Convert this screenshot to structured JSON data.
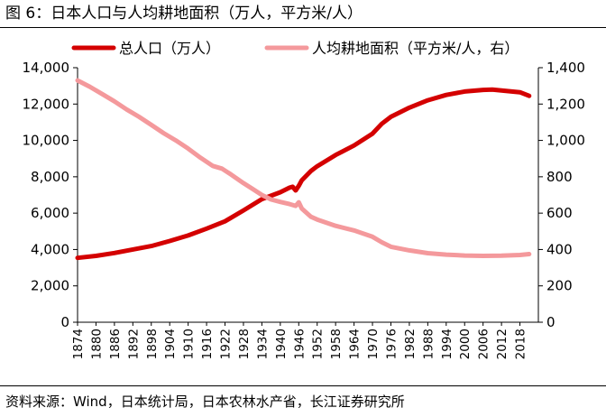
{
  "figure": {
    "title": "图 6：日本人口与人均耕地面积（万人，平方米/人）",
    "source": "资料来源：Wind，日本统计局，日本农林水产省，长江证券研究所"
  },
  "chart_data": {
    "type": "line",
    "title": "日本人口与人均耕地面积（万人，平方米/人）",
    "legend_position": "top",
    "grid": false,
    "x_range": [
      1874,
      2024
    ],
    "x_tick_labels": [
      "1874",
      "1880",
      "1886",
      "1892",
      "1898",
      "1904",
      "1910",
      "1916",
      "1922",
      "1928",
      "1934",
      "1940",
      "1946",
      "1952",
      "1958",
      "1964",
      "1970",
      "1976",
      "1982",
      "1988",
      "1994",
      "2000",
      "2006",
      "2012",
      "2018"
    ],
    "y_left": {
      "range": [
        0,
        14000
      ],
      "tick_labels": [
        "0",
        "2,000",
        "4,000",
        "6,000",
        "8,000",
        "10,000",
        "12,000",
        "14,000"
      ]
    },
    "y_right": {
      "range": [
        0,
        1400
      ],
      "tick_labels": [
        "0",
        "200",
        "400",
        "600",
        "800",
        "1,000",
        "1,200",
        "1,400"
      ]
    },
    "series": [
      {
        "name": "总人口（万人）",
        "axis": "left",
        "color": "#d40000",
        "points": [
          [
            1874,
            3540
          ],
          [
            1880,
            3650
          ],
          [
            1886,
            3810
          ],
          [
            1892,
            4000
          ],
          [
            1898,
            4190
          ],
          [
            1904,
            4470
          ],
          [
            1910,
            4770
          ],
          [
            1916,
            5150
          ],
          [
            1922,
            5550
          ],
          [
            1928,
            6150
          ],
          [
            1934,
            6770
          ],
          [
            1940,
            7150
          ],
          [
            1943,
            7400
          ],
          [
            1944,
            7450
          ],
          [
            1945,
            7250
          ],
          [
            1946,
            7500
          ],
          [
            1947,
            7810
          ],
          [
            1950,
            8320
          ],
          [
            1952,
            8580
          ],
          [
            1958,
            9200
          ],
          [
            1964,
            9720
          ],
          [
            1970,
            10370
          ],
          [
            1973,
            10910
          ],
          [
            1976,
            11300
          ],
          [
            1982,
            11800
          ],
          [
            1988,
            12210
          ],
          [
            1994,
            12500
          ],
          [
            2000,
            12690
          ],
          [
            2006,
            12780
          ],
          [
            2009,
            12800
          ],
          [
            2012,
            12750
          ],
          [
            2018,
            12650
          ],
          [
            2021,
            12450
          ]
        ]
      },
      {
        "name": "人均耕地面积（平方米/人，右）",
        "axis": "right",
        "color": "#f4999c",
        "points": [
          [
            1874,
            1330
          ],
          [
            1878,
            1295
          ],
          [
            1882,
            1255
          ],
          [
            1886,
            1215
          ],
          [
            1890,
            1170
          ],
          [
            1894,
            1130
          ],
          [
            1898,
            1085
          ],
          [
            1902,
            1040
          ],
          [
            1906,
            1000
          ],
          [
            1910,
            955
          ],
          [
            1914,
            905
          ],
          [
            1918,
            860
          ],
          [
            1921,
            845
          ],
          [
            1924,
            812
          ],
          [
            1928,
            765
          ],
          [
            1931,
            733
          ],
          [
            1934,
            700
          ],
          [
            1937,
            675
          ],
          [
            1940,
            662
          ],
          [
            1943,
            650
          ],
          [
            1945,
            640
          ],
          [
            1946,
            660
          ],
          [
            1947,
            625
          ],
          [
            1950,
            580
          ],
          [
            1952,
            565
          ],
          [
            1958,
            530
          ],
          [
            1964,
            505
          ],
          [
            1970,
            470
          ],
          [
            1973,
            440
          ],
          [
            1976,
            415
          ],
          [
            1982,
            395
          ],
          [
            1988,
            380
          ],
          [
            1994,
            372
          ],
          [
            2000,
            367
          ],
          [
            2006,
            365
          ],
          [
            2012,
            366
          ],
          [
            2018,
            370
          ],
          [
            2021,
            375
          ]
        ]
      }
    ]
  }
}
